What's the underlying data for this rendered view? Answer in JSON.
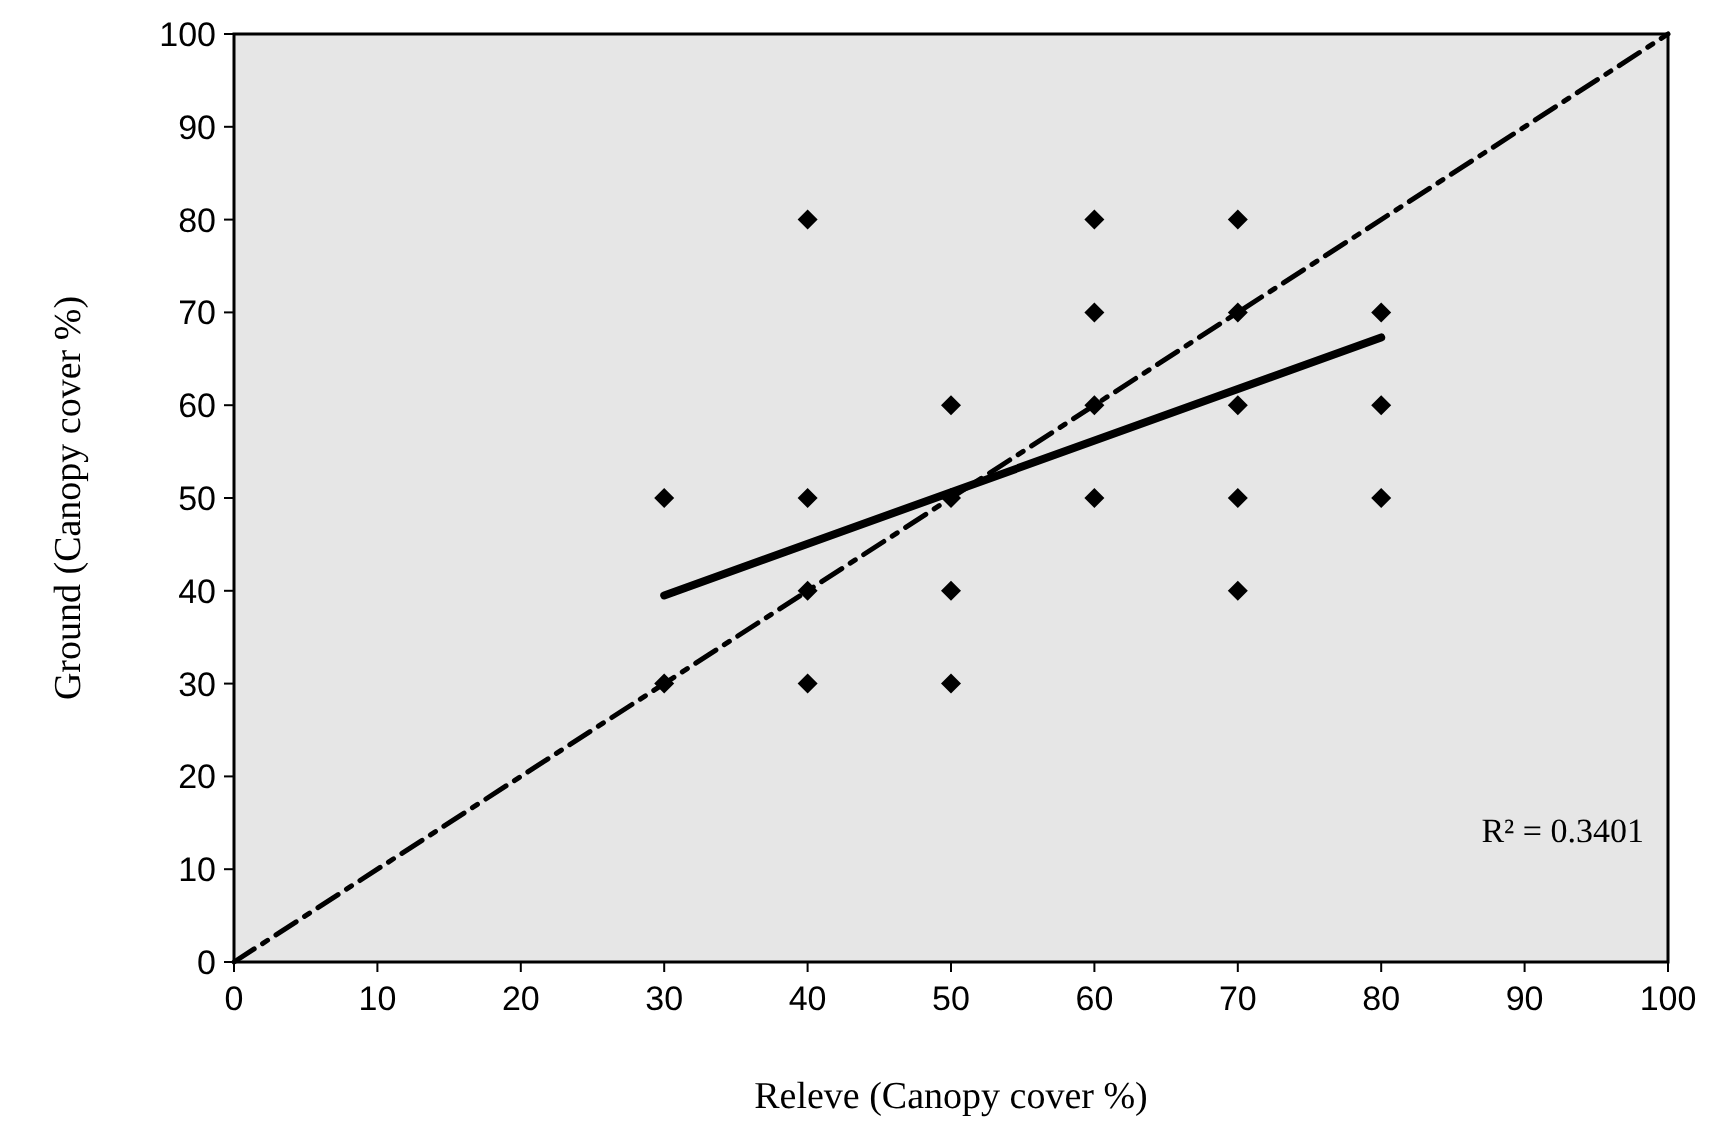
{
  "chart_data": {
    "type": "scatter",
    "xlabel": "Releve (Canopy cover %)",
    "ylabel": "Ground (Canopy cover %)",
    "xlim": [
      0,
      100
    ],
    "ylim": [
      0,
      100
    ],
    "xticks": [
      0,
      10,
      20,
      30,
      40,
      50,
      60,
      70,
      80,
      90,
      100
    ],
    "yticks": [
      0,
      10,
      20,
      30,
      40,
      50,
      60,
      70,
      80,
      90,
      100
    ],
    "grid": false,
    "annotations": [
      "R² = 0.3401"
    ],
    "series": [
      {
        "color": "#000000",
        "marker": "diamond",
        "x": [
          30,
          30,
          40,
          40,
          40,
          40,
          50,
          50,
          50,
          50,
          60,
          60,
          60,
          60,
          70,
          70,
          70,
          70,
          70,
          80,
          80,
          80
        ],
        "values": [
          50,
          30,
          80,
          50,
          40,
          30,
          60,
          50,
          40,
          30,
          80,
          70,
          60,
          50,
          80,
          70,
          60,
          50,
          40,
          70,
          60,
          50
        ]
      },
      {
        "type": "line",
        "color": "#000000",
        "line_style": "solid",
        "x": [
          30,
          80
        ],
        "values": [
          39.5,
          67.3
        ]
      },
      {
        "type": "line",
        "color": "#000000",
        "line_style": "dashed",
        "x": [
          0,
          100
        ],
        "values": [
          0,
          100
        ]
      }
    ]
  }
}
